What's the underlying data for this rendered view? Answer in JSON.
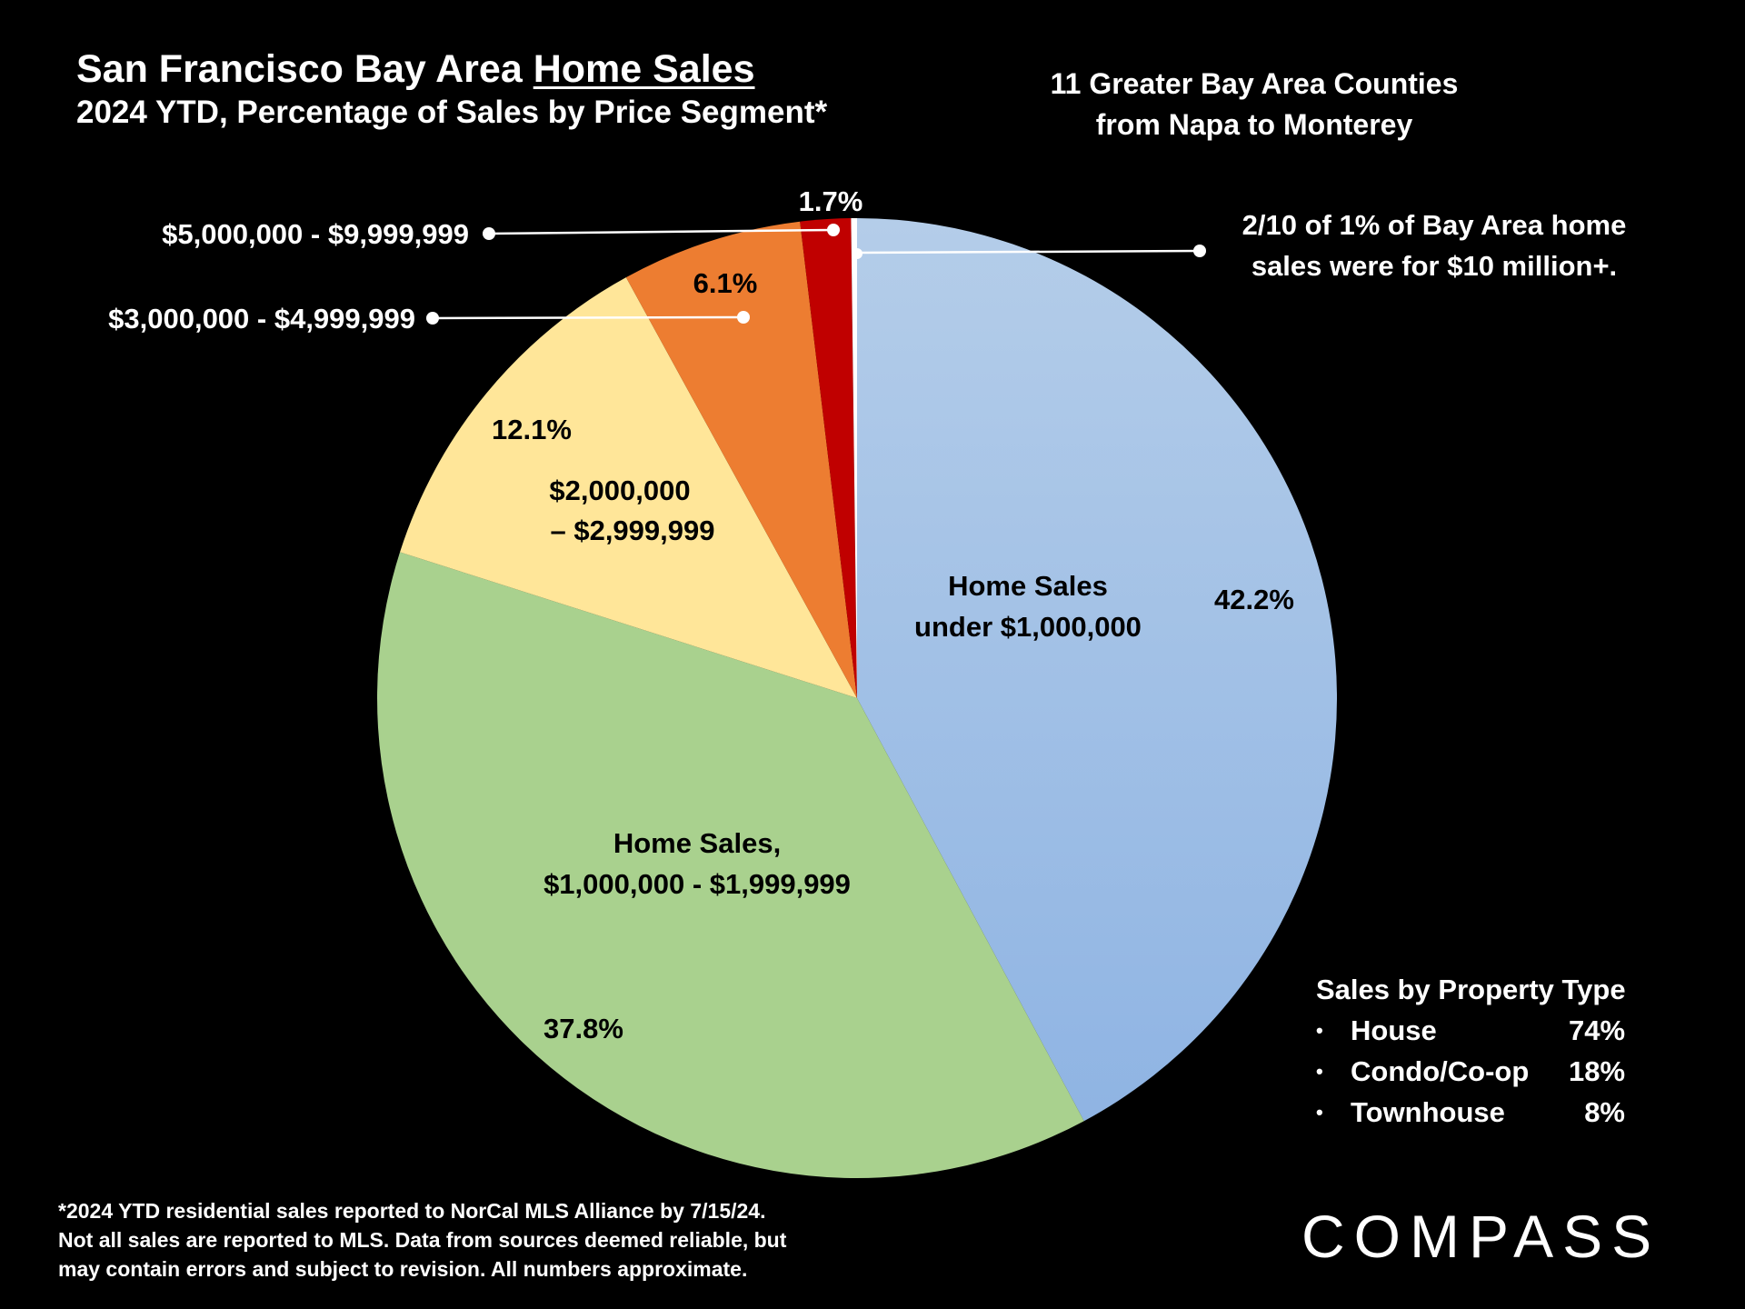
{
  "title": {
    "prefix": "San Francisco Bay Area ",
    "underlined": "Home Sales",
    "subtitle": "2024 YTD, Percentage of Sales by Price Segment*"
  },
  "region": {
    "line1": "11 Greater Bay Area Counties",
    "line2": "from Napa to Monterey"
  },
  "callouts": {
    "ten_million_line1": "2/10 of 1% of Bay Area home",
    "ten_million_line2": "sales were for $10 million+.",
    "five_to_ten": "$5,000,000 - $9,999,999",
    "three_to_five": "$3,000,000 - $4,999,999"
  },
  "chart_data": {
    "type": "pie",
    "title": "San Francisco Bay Area Home Sales",
    "start": "12 o'clock, clockwise",
    "slices": [
      {
        "name": "Home Sales under $1,000,000",
        "label_line1": "Home Sales",
        "label_line2": "under $1,000,000",
        "value": 42.2,
        "value_label": "42.2%",
        "color": "#9dbde6"
      },
      {
        "name": "Home Sales, $1,000,000 - $1,999,999",
        "label_line1": "Home Sales,",
        "label_line2": "$1,000,000 - $1,999,999",
        "value": 37.8,
        "value_label": "37.8%",
        "color": "#a9d18e"
      },
      {
        "name": "$2,000,000 – $2,999,999",
        "label_line1": "$2,000,000",
        "label_line2": "– $2,999,999",
        "value": 12.1,
        "value_label": "12.1%",
        "color": "#ffe699"
      },
      {
        "name": "$3,000,000 - $4,999,999",
        "value": 6.1,
        "value_label": "6.1%",
        "color": "#ed7d31"
      },
      {
        "name": "$5,000,000 - $9,999,999",
        "value": 1.7,
        "value_label": "1.7%",
        "color": "#c00000"
      },
      {
        "name": "$10 million+",
        "value": 0.2,
        "color": "#ffffff"
      }
    ]
  },
  "property_types": {
    "heading": "Sales by Property Type",
    "items": [
      {
        "bullet": "•",
        "type": "House",
        "value": "74%"
      },
      {
        "bullet": "•",
        "type": "Condo/Co-op",
        "value": "18%"
      },
      {
        "bullet": "•",
        "type": "Townhouse",
        "value": "8%"
      }
    ]
  },
  "footnote": {
    "line1": "*2024 YTD residential sales reported to NorCal MLS Alliance by 7/15/24.",
    "line2": "Not all sales are reported to MLS. Data from sources deemed reliable, but",
    "line3": "may contain errors and subject to revision. All numbers approximate."
  },
  "logo": {
    "text": "COMPASS"
  }
}
